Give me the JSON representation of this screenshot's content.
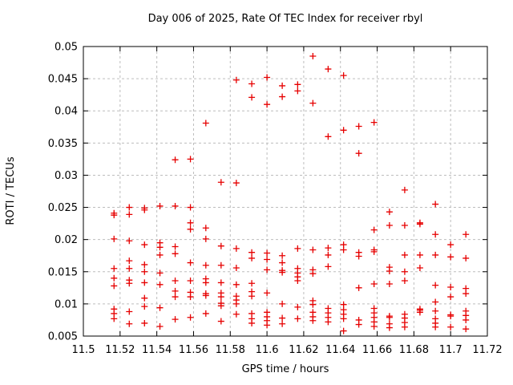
{
  "title": "Day 006 of 2025, Rate Of TEC Index for receiver rbyl",
  "chart_data": {
    "type": "scatter",
    "title": "Day 006 of 2025, Rate Of TEC Index for receiver rbyl",
    "xlabel": "GPS time / hours",
    "ylabel": "ROTI / TECUs",
    "xlim": [
      11.5,
      11.72
    ],
    "ylim": [
      0.005,
      0.05
    ],
    "xticks": [
      11.5,
      11.52,
      11.54,
      11.56,
      11.58,
      11.6,
      11.62,
      11.64,
      11.66,
      11.68,
      11.7,
      11.72
    ],
    "xtick_labels": [
      "11.5",
      "11.52",
      "11.54",
      "11.56",
      "11.58",
      "11.6",
      "11.62",
      "11.64",
      "11.66",
      "11.68",
      "11.7",
      "11.72"
    ],
    "yticks": [
      0.005,
      0.01,
      0.015,
      0.02,
      0.025,
      0.03,
      0.035,
      0.04,
      0.045,
      0.05
    ],
    "ytick_labels": [
      "0.005",
      "0.01",
      "0.015",
      "0.02",
      "0.025",
      "0.03",
      "0.035",
      "0.04",
      "0.045",
      "0.05"
    ],
    "grid": true,
    "legend": false,
    "marker_symbol": "plus",
    "colors": {
      "marker": "#e60000",
      "grid": "#bdbdbd",
      "frame": "#000000",
      "text": "#000000",
      "background": "#ffffff"
    },
    "points": [
      [
        11.5167,
        0.0241
      ],
      [
        11.5167,
        0.0238
      ],
      [
        11.5167,
        0.0201
      ],
      [
        11.5167,
        0.0155
      ],
      [
        11.5167,
        0.014
      ],
      [
        11.5167,
        0.0128
      ],
      [
        11.5167,
        0.0092
      ],
      [
        11.5167,
        0.0085
      ],
      [
        11.5167,
        0.0077
      ],
      [
        11.525,
        0.025
      ],
      [
        11.525,
        0.0239
      ],
      [
        11.525,
        0.0198
      ],
      [
        11.525,
        0.0167
      ],
      [
        11.525,
        0.0155
      ],
      [
        11.525,
        0.0137
      ],
      [
        11.525,
        0.0132
      ],
      [
        11.525,
        0.0088
      ],
      [
        11.525,
        0.0069
      ],
      [
        11.5333,
        0.0249
      ],
      [
        11.5333,
        0.0246
      ],
      [
        11.5333,
        0.0192
      ],
      [
        11.5333,
        0.0161
      ],
      [
        11.5333,
        0.015
      ],
      [
        11.5333,
        0.0133
      ],
      [
        11.5333,
        0.0109
      ],
      [
        11.5333,
        0.0096
      ],
      [
        11.5333,
        0.007
      ],
      [
        11.5417,
        0.0252
      ],
      [
        11.5417,
        0.0195
      ],
      [
        11.5417,
        0.0188
      ],
      [
        11.5417,
        0.0176
      ],
      [
        11.5417,
        0.0148
      ],
      [
        11.5417,
        0.013
      ],
      [
        11.5417,
        0.0094
      ],
      [
        11.5417,
        0.0065
      ],
      [
        11.55,
        0.0324
      ],
      [
        11.55,
        0.0252
      ],
      [
        11.55,
        0.0189
      ],
      [
        11.55,
        0.0178
      ],
      [
        11.55,
        0.0136
      ],
      [
        11.55,
        0.012
      ],
      [
        11.55,
        0.0111
      ],
      [
        11.55,
        0.0076
      ],
      [
        11.5583,
        0.0325
      ],
      [
        11.5583,
        0.025
      ],
      [
        11.5583,
        0.0226
      ],
      [
        11.5583,
        0.0216
      ],
      [
        11.5583,
        0.0164
      ],
      [
        11.5583,
        0.0136
      ],
      [
        11.5583,
        0.0118
      ],
      [
        11.5583,
        0.0111
      ],
      [
        11.5583,
        0.0079
      ],
      [
        11.5667,
        0.0381
      ],
      [
        11.5667,
        0.0218
      ],
      [
        11.5667,
        0.0201
      ],
      [
        11.5667,
        0.016
      ],
      [
        11.5667,
        0.0139
      ],
      [
        11.5667,
        0.0133
      ],
      [
        11.5667,
        0.0116
      ],
      [
        11.5667,
        0.0113
      ],
      [
        11.5667,
        0.0085
      ],
      [
        11.575,
        0.0289
      ],
      [
        11.575,
        0.019
      ],
      [
        11.575,
        0.016
      ],
      [
        11.575,
        0.0133
      ],
      [
        11.575,
        0.0117
      ],
      [
        11.575,
        0.0111
      ],
      [
        11.575,
        0.0101
      ],
      [
        11.575,
        0.0097
      ],
      [
        11.575,
        0.0073
      ],
      [
        11.5833,
        0.0448
      ],
      [
        11.5833,
        0.0288
      ],
      [
        11.5833,
        0.0186
      ],
      [
        11.5833,
        0.0156
      ],
      [
        11.5833,
        0.013
      ],
      [
        11.5833,
        0.0112
      ],
      [
        11.5833,
        0.0106
      ],
      [
        11.5833,
        0.01
      ],
      [
        11.5833,
        0.0084
      ],
      [
        11.5917,
        0.0442
      ],
      [
        11.5917,
        0.0421
      ],
      [
        11.5917,
        0.018
      ],
      [
        11.5917,
        0.0171
      ],
      [
        11.5917,
        0.0132
      ],
      [
        11.5917,
        0.0119
      ],
      [
        11.5917,
        0.0112
      ],
      [
        11.5917,
        0.0085
      ],
      [
        11.5917,
        0.0077
      ],
      [
        11.5917,
        0.007
      ],
      [
        11.6,
        0.0452
      ],
      [
        11.6,
        0.041
      ],
      [
        11.6,
        0.0179
      ],
      [
        11.6,
        0.0169
      ],
      [
        11.6,
        0.0153
      ],
      [
        11.6,
        0.0117
      ],
      [
        11.6,
        0.0087
      ],
      [
        11.6,
        0.008
      ],
      [
        11.6,
        0.0074
      ],
      [
        11.6,
        0.0067
      ],
      [
        11.6083,
        0.0439
      ],
      [
        11.6083,
        0.0422
      ],
      [
        11.6083,
        0.0175
      ],
      [
        11.6083,
        0.0164
      ],
      [
        11.6083,
        0.0152
      ],
      [
        11.6083,
        0.0149
      ],
      [
        11.6083,
        0.01
      ],
      [
        11.6083,
        0.0078
      ],
      [
        11.6083,
        0.0069
      ],
      [
        11.6167,
        0.0441
      ],
      [
        11.6167,
        0.0431
      ],
      [
        11.6167,
        0.0186
      ],
      [
        11.6167,
        0.0155
      ],
      [
        11.6167,
        0.0148
      ],
      [
        11.6167,
        0.0142
      ],
      [
        11.6167,
        0.0136
      ],
      [
        11.6167,
        0.0095
      ],
      [
        11.6167,
        0.0077
      ],
      [
        11.625,
        0.0485
      ],
      [
        11.625,
        0.0412
      ],
      [
        11.625,
        0.0184
      ],
      [
        11.625,
        0.0153
      ],
      [
        11.625,
        0.0147
      ],
      [
        11.625,
        0.0105
      ],
      [
        11.625,
        0.0099
      ],
      [
        11.625,
        0.0087
      ],
      [
        11.625,
        0.008
      ],
      [
        11.625,
        0.0074
      ],
      [
        11.6333,
        0.0465
      ],
      [
        11.6333,
        0.036
      ],
      [
        11.6333,
        0.0187
      ],
      [
        11.6333,
        0.0176
      ],
      [
        11.6333,
        0.0158
      ],
      [
        11.6333,
        0.0093
      ],
      [
        11.6333,
        0.0086
      ],
      [
        11.6333,
        0.0079
      ],
      [
        11.6333,
        0.0072
      ],
      [
        11.6417,
        0.0455
      ],
      [
        11.6417,
        0.037
      ],
      [
        11.6417,
        0.0192
      ],
      [
        11.6417,
        0.0184
      ],
      [
        11.6417,
        0.0099
      ],
      [
        11.6417,
        0.0091
      ],
      [
        11.6417,
        0.0084
      ],
      [
        11.6417,
        0.0077
      ],
      [
        11.6417,
        0.0058
      ],
      [
        11.65,
        0.0376
      ],
      [
        11.65,
        0.0334
      ],
      [
        11.65,
        0.018
      ],
      [
        11.65,
        0.0174
      ],
      [
        11.65,
        0.0125
      ],
      [
        11.65,
        0.0075
      ],
      [
        11.65,
        0.0068
      ],
      [
        11.6583,
        0.0382
      ],
      [
        11.6583,
        0.0215
      ],
      [
        11.6583,
        0.0184
      ],
      [
        11.6583,
        0.0181
      ],
      [
        11.6583,
        0.0131
      ],
      [
        11.6583,
        0.0093
      ],
      [
        11.6583,
        0.0086
      ],
      [
        11.6583,
        0.0079
      ],
      [
        11.6583,
        0.0072
      ],
      [
        11.6583,
        0.0065
      ],
      [
        11.6667,
        0.0243
      ],
      [
        11.6667,
        0.0222
      ],
      [
        11.6667,
        0.0157
      ],
      [
        11.6667,
        0.0151
      ],
      [
        11.6667,
        0.0131
      ],
      [
        11.6667,
        0.0081
      ],
      [
        11.6667,
        0.0079
      ],
      [
        11.6667,
        0.0069
      ],
      [
        11.6667,
        0.0063
      ],
      [
        11.675,
        0.0277
      ],
      [
        11.675,
        0.0222
      ],
      [
        11.675,
        0.0176
      ],
      [
        11.675,
        0.015
      ],
      [
        11.675,
        0.0136
      ],
      [
        11.675,
        0.0084
      ],
      [
        11.675,
        0.0078
      ],
      [
        11.675,
        0.0071
      ],
      [
        11.675,
        0.0064
      ],
      [
        11.6833,
        0.0226
      ],
      [
        11.6833,
        0.0224
      ],
      [
        11.6833,
        0.0176
      ],
      [
        11.6833,
        0.0156
      ],
      [
        11.6833,
        0.0092
      ],
      [
        11.6833,
        0.009
      ],
      [
        11.6833,
        0.0087
      ],
      [
        11.6917,
        0.0255
      ],
      [
        11.6917,
        0.0208
      ],
      [
        11.6917,
        0.0176
      ],
      [
        11.6917,
        0.0129
      ],
      [
        11.6917,
        0.0103
      ],
      [
        11.6917,
        0.0089
      ],
      [
        11.6917,
        0.0077
      ],
      [
        11.6917,
        0.007
      ],
      [
        11.6917,
        0.0064
      ],
      [
        11.7,
        0.0192
      ],
      [
        11.7,
        0.0173
      ],
      [
        11.7,
        0.0126
      ],
      [
        11.7,
        0.0111
      ],
      [
        11.7,
        0.0083
      ],
      [
        11.7,
        0.0081
      ],
      [
        11.7,
        0.0064
      ],
      [
        11.7083,
        0.0208
      ],
      [
        11.7083,
        0.0171
      ],
      [
        11.7083,
        0.0124
      ],
      [
        11.7083,
        0.0116
      ],
      [
        11.7083,
        0.0089
      ],
      [
        11.7083,
        0.0082
      ],
      [
        11.7083,
        0.0075
      ],
      [
        11.7083,
        0.0061
      ]
    ]
  }
}
